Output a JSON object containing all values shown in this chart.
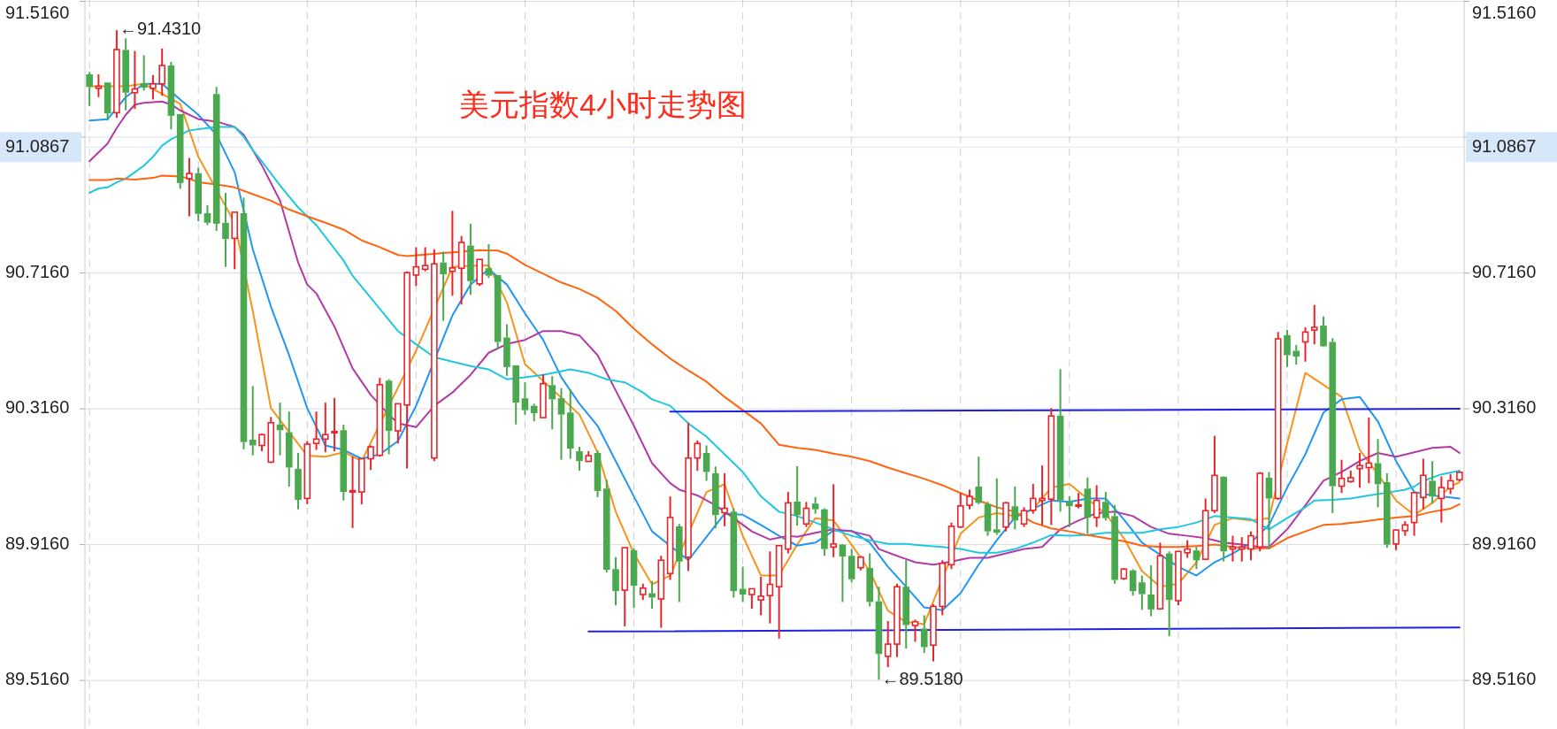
{
  "chart_data": {
    "type": "candlestick",
    "title": "美元指数4小时走势图",
    "categories": [
      null,
      null,
      null,
      null,
      null,
      null,
      null,
      null,
      null,
      null,
      null,
      null,
      null,
      null,
      null,
      null,
      null,
      null,
      null,
      null,
      null,
      null,
      null,
      null,
      null,
      null,
      null,
      null,
      null,
      null,
      null,
      null,
      null,
      null,
      null,
      null,
      null,
      null,
      null,
      null,
      null,
      null,
      null,
      null,
      null,
      null,
      null,
      null,
      null,
      null,
      null,
      null,
      null,
      null,
      null,
      null,
      null,
      null,
      null,
      null,
      null,
      null,
      null,
      null,
      null,
      null,
      null,
      null,
      null,
      null,
      null,
      null,
      null,
      null,
      null,
      null,
      null,
      null,
      null,
      null,
      null,
      null,
      null,
      null,
      null,
      null,
      null,
      null,
      null,
      null,
      null,
      null,
      null,
      null,
      null,
      null,
      null,
      null,
      null,
      null,
      null,
      null,
      null,
      null,
      null,
      null,
      null,
      null,
      null,
      null,
      null,
      null,
      null,
      null,
      null,
      null,
      null,
      null,
      null,
      null,
      null,
      null,
      null,
      null,
      null,
      null,
      null,
      null,
      null,
      null,
      null,
      null,
      null,
      null,
      null,
      null,
      null,
      null,
      null,
      null,
      null,
      null,
      null,
      null,
      null,
      null,
      null,
      null,
      null,
      null,
      null,
      null
    ],
    "ohlc": [
      [
        91.301,
        91.308,
        91.208,
        91.264
      ],
      [
        91.26,
        91.301,
        91.234,
        91.266
      ],
      [
        91.277,
        91.277,
        91.165,
        91.186
      ],
      [
        91.188,
        91.431,
        91.173,
        91.374
      ],
      [
        91.373,
        91.407,
        91.195,
        91.247
      ],
      [
        91.247,
        91.37,
        91.199,
        91.258
      ],
      [
        91.275,
        91.357,
        91.253,
        91.262
      ],
      [
        91.26,
        91.299,
        91.227,
        91.273
      ],
      [
        91.273,
        91.377,
        91.238,
        91.327
      ],
      [
        91.327,
        91.338,
        91.139,
        91.179
      ],
      [
        91.184,
        91.184,
        90.964,
        90.981
      ],
      [
        90.994,
        91.055,
        90.883,
        91.009
      ],
      [
        91.01,
        91.026,
        90.868,
        90.89
      ],
      [
        90.892,
        90.916,
        90.857,
        90.864
      ],
      [
        91.243,
        91.264,
        90.84,
        90.861
      ],
      [
        90.864,
        90.952,
        90.734,
        90.816
      ],
      [
        90.818,
        90.895,
        90.727,
        90.895
      ],
      [
        90.892,
        90.938,
        90.197,
        90.218
      ],
      [
        90.225,
        90.383,
        90.179,
        90.208
      ],
      [
        90.208,
        90.243,
        90.191,
        90.24
      ],
      [
        90.159,
        90.292,
        90.156,
        90.275
      ],
      [
        90.27,
        90.334,
        90.179,
        90.253
      ],
      [
        90.247,
        90.308,
        90.087,
        90.143
      ],
      [
        90.139,
        90.186,
        90.02,
        90.048
      ],
      [
        90.052,
        90.221,
        90.035,
        90.212
      ],
      [
        90.214,
        90.308,
        90.195,
        90.227
      ],
      [
        90.227,
        90.334,
        90.188,
        90.24
      ],
      [
        90.245,
        90.348,
        90.191,
        90.249
      ],
      [
        90.253,
        90.269,
        90.046,
        90.071
      ],
      [
        90.071,
        90.175,
        89.965,
        90.075
      ],
      [
        90.071,
        90.169,
        90.035,
        90.169
      ],
      [
        90.169,
        90.208,
        90.136,
        90.204
      ],
      [
        90.179,
        90.407,
        90.175,
        90.387
      ],
      [
        90.399,
        90.403,
        90.182,
        90.251
      ],
      [
        90.251,
        90.331,
        90.214,
        90.331
      ],
      [
        90.327,
        90.721,
        90.14,
        90.717
      ],
      [
        90.71,
        90.792,
        90.678,
        90.734
      ],
      [
        90.727,
        90.792,
        90.721,
        90.738
      ],
      [
        90.171,
        90.786,
        90.162,
        90.743
      ],
      [
        90.747,
        90.779,
        90.575,
        90.712
      ],
      [
        90.721,
        90.899,
        90.649,
        90.731
      ],
      [
        90.73,
        90.825,
        90.623,
        90.806
      ],
      [
        90.797,
        90.861,
        90.652,
        90.692
      ],
      [
        90.684,
        90.756,
        90.678,
        90.756
      ],
      [
        90.73,
        90.801,
        90.701,
        90.708
      ],
      [
        90.71,
        90.71,
        90.494,
        90.513
      ],
      [
        90.526,
        90.565,
        90.413,
        90.439
      ],
      [
        90.444,
        90.444,
        90.27,
        90.334
      ],
      [
        90.347,
        90.394,
        90.299,
        90.312
      ],
      [
        90.325,
        90.331,
        90.279,
        90.303
      ],
      [
        90.29,
        90.418,
        90.29,
        90.39
      ],
      [
        90.386,
        90.412,
        90.256,
        90.344
      ],
      [
        90.347,
        90.377,
        90.166,
        90.299
      ],
      [
        90.305,
        90.373,
        90.169,
        90.199
      ],
      [
        90.191,
        90.204,
        90.134,
        90.162
      ],
      [
        90.161,
        90.191,
        90.16,
        90.178
      ],
      [
        90.186,
        90.193,
        90.056,
        90.074
      ],
      [
        90.081,
        90.107,
        89.834,
        89.842
      ],
      [
        89.844,
        89.879,
        89.737,
        89.779
      ],
      [
        89.782,
        89.907,
        89.675,
        89.907
      ],
      [
        89.899,
        89.905,
        89.73,
        89.795
      ],
      [
        89.769,
        89.801,
        89.753,
        89.788
      ],
      [
        89.773,
        89.809,
        89.727,
        89.76
      ],
      [
        89.756,
        89.883,
        89.671,
        89.87
      ],
      [
        89.831,
        90.058,
        89.812,
        89.996
      ],
      [
        89.97,
        89.977,
        89.747,
        89.866
      ],
      [
        89.879,
        90.275,
        89.838,
        90.171
      ],
      [
        90.171,
        90.223,
        90.133,
        90.214
      ],
      [
        90.186,
        90.208,
        90.104,
        90.13
      ],
      [
        90.126,
        90.146,
        89.964,
        90.003
      ],
      [
        90.01,
        90.126,
        89.97,
        90.023
      ],
      [
        90.013,
        90.023,
        89.76,
        89.779
      ],
      [
        89.786,
        89.851,
        89.747,
        89.769
      ],
      [
        89.769,
        89.786,
        89.727,
        89.786
      ],
      [
        89.753,
        89.821,
        89.708,
        89.764
      ],
      [
        89.766,
        89.896,
        89.684,
        89.799
      ],
      [
        89.792,
        89.913,
        89.639,
        89.913
      ],
      [
        89.903,
        90.071,
        89.89,
        90.039
      ],
      [
        90.043,
        90.147,
        89.972,
        90.003
      ],
      [
        89.977,
        90.042,
        89.968,
        90.023
      ],
      [
        90.037,
        90.056,
        90.007,
        90.02
      ],
      [
        90.02,
        90.023,
        89.883,
        89.903
      ],
      [
        89.909,
        90.094,
        89.879,
        89.918
      ],
      [
        89.916,
        89.918,
        89.747,
        89.881
      ],
      [
        89.883,
        89.903,
        89.805,
        89.814
      ],
      [
        89.848,
        89.883,
        89.84,
        89.879
      ],
      [
        89.847,
        89.89,
        89.734,
        89.747
      ],
      [
        89.749,
        89.792,
        89.518,
        89.594
      ],
      [
        89.587,
        89.691,
        89.555,
        89.623
      ],
      [
        89.623,
        89.801,
        89.585,
        89.792
      ],
      [
        89.792,
        89.87,
        89.61,
        89.679
      ],
      [
        89.678,
        89.695,
        89.63,
        89.689
      ],
      [
        89.669,
        89.708,
        89.597,
        89.614
      ],
      [
        89.62,
        89.74,
        89.572,
        89.734
      ],
      [
        89.734,
        89.87,
        89.708,
        89.861
      ],
      [
        89.857,
        89.981,
        89.844,
        89.97
      ],
      [
        89.968,
        90.068,
        89.965,
        90.03
      ],
      [
        90.032,
        90.078,
        90.02,
        90.058
      ],
      [
        90.087,
        90.175,
        90.035,
        90.039
      ],
      [
        90.035,
        90.042,
        89.942,
        89.955
      ],
      [
        89.961,
        90.111,
        89.945,
        89.951
      ],
      [
        89.968,
        90.042,
        89.955,
        90.039
      ],
      [
        90.029,
        90.087,
        89.961,
        89.987
      ],
      [
        89.977,
        90.026,
        89.968,
        90.016
      ],
      [
        90.017,
        90.095,
        90.007,
        90.052
      ],
      [
        90.046,
        90.149,
        89.974,
        90.052
      ],
      [
        90.05,
        90.318,
        89.974,
        90.295
      ],
      [
        90.296,
        90.433,
        90.013,
        90.046
      ],
      [
        90.042,
        90.058,
        89.968,
        90.029
      ],
      [
        90.029,
        90.068,
        90.023,
        90.033
      ],
      [
        90.081,
        90.114,
        89.948,
        89.996
      ],
      [
        89.996,
        90.091,
        89.968,
        90.046
      ],
      [
        90.042,
        90.071,
        89.987,
        89.994
      ],
      [
        90.0,
        90.033,
        89.801,
        89.812
      ],
      [
        89.816,
        89.847,
        89.812,
        89.844
      ],
      [
        89.84,
        89.844,
        89.766,
        89.779
      ],
      [
        89.805,
        89.825,
        89.724,
        89.77
      ],
      [
        89.769,
        89.855,
        89.705,
        89.725
      ],
      [
        89.727,
        89.922,
        89.724,
        89.883
      ],
      [
        89.89,
        89.896,
        89.646,
        89.753
      ],
      [
        89.751,
        89.896,
        89.737,
        89.896
      ],
      [
        89.892,
        89.929,
        89.877,
        89.903
      ],
      [
        89.899,
        89.909,
        89.844,
        89.87
      ],
      [
        89.873,
        90.052,
        89.87,
        90.016
      ],
      [
        90.016,
        90.236,
        90.009,
        90.12
      ],
      [
        90.116,
        90.117,
        89.866,
        89.896
      ],
      [
        89.903,
        89.942,
        89.866,
        89.909
      ],
      [
        89.903,
        89.938,
        89.866,
        89.909
      ],
      [
        89.903,
        89.955,
        89.87,
        89.942
      ],
      [
        89.909,
        90.13,
        89.896,
        90.126
      ],
      [
        90.113,
        90.13,
        89.903,
        90.052
      ],
      [
        90.052,
        90.542,
        90.048,
        90.522
      ],
      [
        90.533,
        90.548,
        90.439,
        90.474
      ],
      [
        90.487,
        90.504,
        90.446,
        90.47
      ],
      [
        90.513,
        90.556,
        90.455,
        90.542
      ],
      [
        90.548,
        90.622,
        90.506,
        90.556
      ],
      [
        90.561,
        90.588,
        90.498,
        90.5
      ],
      [
        90.513,
        90.524,
        90.009,
        90.088
      ],
      [
        90.088,
        90.166,
        90.068,
        90.111
      ],
      [
        90.102,
        90.134,
        90.098,
        90.113
      ],
      [
        90.14,
        90.186,
        90.084,
        90.149
      ],
      [
        90.143,
        90.29,
        90.097,
        90.156
      ],
      [
        90.156,
        90.227,
        90.026,
        90.094
      ],
      [
        90.1,
        90.126,
        89.907,
        89.916
      ],
      [
        89.918,
        89.961,
        89.9,
        89.959
      ],
      [
        89.957,
        89.985,
        89.942,
        89.974
      ],
      [
        89.981,
        90.071,
        89.942,
        90.069
      ],
      [
        90.055,
        90.169,
        90.02,
        90.12
      ],
      [
        90.104,
        90.162,
        90.037,
        90.058
      ],
      [
        90.052,
        90.117,
        89.981,
        90.084
      ],
      [
        90.081,
        90.124,
        90.065,
        90.104
      ],
      [
        90.107,
        90.132,
        90.102,
        90.129
      ]
    ],
    "series": [
      {
        "type": "line",
        "color": "#f7941d",
        "values": [
          91.266,
          null,
          91.266,
          null,
          91.266,
          null,
          91.273,
          null,
          null,
          null,
          91.214,
          null,
          91.058,
          null,
          null,
          null,
          90.864,
          null,
          90.604,
          null,
          90.318,
          null,
          null,
          null,
          90.178,
          null,
          90.175,
          null,
          90.188,
          null,
          90.162,
          null,
          null,
          null,
          null,
          null,
          90.487,
          null,
          null,
          null,
          90.734,
          null,
          90.737,
          null,
          90.738,
          null,
          90.63,
          null,
          90.448,
          null,
          null,
          null,
          null,
          null,
          90.299,
          null,
          90.188,
          null,
          90.013,
          null,
          89.89,
          null,
          89.799,
          null,
          89.825,
          null,
          null,
          null,
          90.071,
          null,
          90.094,
          null,
          89.942,
          null,
          89.825,
          null,
          89.825,
          null,
          89.916,
          null,
          89.994,
          null,
          89.987,
          null,
          89.916,
          null,
          89.838,
          null,
          89.721,
          null,
          89.688,
          null,
          89.682,
          null,
          null,
          null,
          89.948,
          null,
          89.996,
          null,
          90.009,
          null,
          90.0,
          null,
          90.02,
          null,
          90.084,
          null,
          90.095,
          null,
          null,
          null,
          90.007,
          null,
          89.935,
          null,
          89.838,
          null,
          89.792,
          null,
          89.801,
          null,
          89.864,
          null,
          89.974,
          null,
          89.994,
          null,
          89.987,
          null,
          89.994,
          null,
          90.214,
          null,
          90.422,
          null,
          null,
          null,
          90.351,
          null,
          90.195,
          null,
          90.123,
          null,
          90.046,
          null,
          90.003,
          null,
          90.039,
          null,
          90.087,
          90.1
        ]
      },
      {
        "type": "line",
        "color": "#2196f3",
        "values": [
          91.165,
          null,
          91.169,
          null,
          91.234,
          null,
          91.273,
          null,
          91.273,
          null,
          91.227,
          null,
          91.182,
          null,
          91.123,
          null,
          91.013,
          null,
          90.786,
          null,
          90.617,
          null,
          90.474,
          null,
          90.318,
          null,
          90.208,
          null,
          90.195,
          null,
          90.169,
          null,
          90.182,
          null,
          90.221,
          null,
          90.325,
          null,
          null,
          null,
          90.591,
          null,
          90.682,
          null,
          90.727,
          null,
          90.682,
          null,
          90.597,
          null,
          90.519,
          null,
          90.409,
          null,
          90.331,
          null,
          90.266,
          null,
          90.162,
          null,
          90.058,
          null,
          89.955,
          null,
          null,
          null,
          89.87,
          null,
          89.939,
          null,
          90.007,
          null,
          90.004,
          null,
          89.974,
          null,
          89.942,
          null,
          89.913,
          null,
          89.922,
          null,
          89.957,
          null,
          89.957,
          null,
          89.922,
          null,
          89.851,
          null,
          89.792,
          null,
          89.731,
          null,
          89.723,
          null,
          89.773,
          null,
          89.857,
          null,
          89.929,
          null,
          89.996,
          null,
          90.022,
          null,
          90.046,
          null,
          90.042,
          null,
          90.052,
          null,
          90.052,
          null,
          89.99,
          null,
          89.922,
          null,
          null,
          null,
          89.851,
          null,
          89.825,
          null,
          89.864,
          null,
          89.89,
          null,
          89.922,
          null,
          89.974,
          null,
          90.084,
          null,
          90.182,
          null,
          90.305,
          null,
          90.344,
          null,
          90.351,
          null,
          90.279,
          null,
          90.162,
          null,
          90.071,
          null,
          90.061,
          null,
          90.055,
          90.052
        ]
      },
      {
        "type": "line",
        "color": "#b23aa6",
        "values": [
          91.045,
          null,
          91.097,
          91.143,
          91.182,
          91.212,
          91.217,
          null,
          91.221,
          91.212,
          91.195,
          null,
          91.169,
          null,
          91.162,
          null,
          91.146,
          91.123,
          null,
          91.033,
          null,
          90.929,
          90.838,
          90.747,
          90.682,
          90.656,
          null,
          90.558,
          null,
          90.435,
          null,
          90.357,
          null,
          90.299,
          90.273,
          null,
          90.262,
          null,
          90.325,
          null,
          90.364,
          null,
          90.416,
          null,
          90.481,
          null,
          90.507,
          null,
          90.519,
          null,
          90.545,
          null,
          90.545,
          null,
          90.532,
          null,
          90.474,
          null,
          90.37,
          null,
          90.266,
          null,
          90.156,
          null,
          90.097,
          90.078,
          null,
          90.061,
          null,
          90.032,
          null,
          89.994,
          null,
          89.955,
          null,
          89.931,
          null,
          89.942,
          89.939,
          null,
          89.951,
          null,
          89.961,
          null,
          89.955,
          null,
          89.942,
          89.903,
          null,
          89.883,
          null,
          89.864,
          null,
          89.857,
          null,
          89.866,
          null,
          89.877,
          null,
          89.877,
          null,
          89.89,
          null,
          89.903,
          null,
          89.909,
          null,
          89.961,
          null,
          89.987,
          null,
          90.009,
          null,
          90.013,
          null,
          90.0,
          null,
          89.968,
          null,
          89.948,
          null,
          89.942,
          null,
          89.935,
          null,
          89.922,
          null,
          89.916,
          null,
          89.909,
          89.909,
          null,
          89.961,
          null,
          90.032,
          null,
          90.104,
          null,
          90.13,
          null,
          90.162,
          null,
          90.186,
          null,
          90.175,
          null,
          90.188,
          null,
          90.201,
          null,
          90.204,
          90.186
        ]
      },
      {
        "type": "line",
        "color": "#1fc8e0",
        "values": [
          90.952,
          90.965,
          90.968,
          90.983,
          90.994,
          91.013,
          91.032,
          91.058,
          91.091,
          91.11,
          91.123,
          91.136,
          null,
          91.143,
          91.146,
          null,
          91.146,
          91.117,
          91.078,
          91.045,
          null,
          90.974,
          null,
          90.909,
          null,
          90.857,
          null,
          null,
          90.753,
          90.708,
          null,
          90.643,
          null,
          90.578,
          90.545,
          null,
          90.506,
          null,
          90.468,
          null,
          90.455,
          null,
          90.442,
          null,
          90.432,
          null,
          90.403,
          null,
          90.409,
          null,
          90.416,
          null,
          null,
          90.432,
          null,
          90.422,
          null,
          90.403,
          null,
          90.394,
          null,
          90.364,
          90.344,
          null,
          90.325,
          90.299,
          90.273,
          null,
          90.234,
          null,
          90.182,
          null,
          90.13,
          null,
          90.058,
          null,
          90.013,
          null,
          90.0,
          null,
          89.981,
          null,
          89.961,
          null,
          89.942,
          null,
          89.929,
          null,
          89.918,
          null,
          89.918,
          null,
          89.913,
          null,
          89.909,
          null,
          89.903,
          null,
          89.892,
          null,
          89.892,
          null,
          89.903,
          null,
          89.922,
          null,
          89.944,
          null,
          89.942,
          null,
          89.944,
          null,
          89.951,
          null,
          89.951,
          null,
          89.951,
          null,
          89.961,
          null,
          89.968,
          null,
          89.981,
          null,
          90.0,
          null,
          89.996,
          null,
          89.991,
          null,
          89.961,
          null,
          89.994,
          null,
          90.026,
          90.046,
          null,
          90.048,
          null,
          90.052,
          null,
          90.061,
          null,
          90.069,
          null,
          90.078,
          90.087,
          90.104,
          null,
          90.123,
          null,
          90.134
        ]
      },
      {
        "type": "line",
        "color": "#ff6410",
        "values": [
          90.99,
          null,
          90.99,
          90.994,
          null,
          90.991,
          null,
          90.996,
          91.003,
          null,
          91.0,
          90.994,
          90.983,
          null,
          90.977,
          null,
          90.968,
          null,
          90.948,
          null,
          90.929,
          null,
          90.903,
          null,
          90.883,
          null,
          90.864,
          null,
          90.844,
          null,
          90.812,
          null,
          90.792,
          null,
          90.769,
          90.766,
          null,
          90.77,
          null,
          90.775,
          null,
          90.779,
          null,
          90.783,
          null,
          90.782,
          90.773,
          null,
          90.74,
          null,
          90.714,
          null,
          90.688,
          null,
          90.669,
          null,
          90.643,
          null,
          90.604,
          null,
          90.552,
          null,
          90.506,
          null,
          90.464,
          null,
          90.429,
          null,
          90.396,
          null,
          90.351,
          null,
          90.312,
          null,
          90.273,
          null,
          90.21,
          null,
          90.201,
          null,
          90.195,
          null,
          90.184,
          null,
          90.175,
          null,
          90.162,
          null,
          90.143,
          null,
          90.126,
          null,
          90.11,
          null,
          90.091,
          null,
          90.068,
          null,
          90.046,
          null,
          90.026,
          null,
          90.013,
          null,
          89.981,
          null,
          89.964,
          null,
          89.955,
          null,
          89.944,
          null,
          89.935,
          null,
          89.926,
          null,
          89.913,
          null,
          89.909,
          null,
          89.909,
          null,
          89.912,
          null,
          89.916,
          null,
          89.909,
          null,
          89.905,
          null,
          89.905,
          null,
          89.935,
          null,
          89.955,
          null,
          89.974,
          null,
          89.977,
          null,
          89.983,
          null,
          89.99,
          null,
          89.996,
          null,
          90.0,
          null,
          90.013,
          null,
          90.022,
          90.035
        ]
      },
      {
        "type": "line",
        "color": "#1f1fe6",
        "values": [
          null,
          null,
          null,
          null,
          null,
          null,
          null,
          null,
          null,
          null,
          null,
          null,
          null,
          null,
          null,
          null,
          null,
          null,
          null,
          null,
          null,
          null,
          null,
          null,
          null,
          null,
          null,
          null,
          null,
          null,
          null,
          null,
          null,
          null,
          null,
          null,
          null,
          null,
          null,
          null,
          null,
          null,
          null,
          null,
          null,
          null,
          null,
          null,
          null,
          null,
          null,
          null,
          null,
          null,
          null,
          null,
          null,
          null,
          null,
          null,
          null,
          null,
          null,
          null,
          90.308,
          null,
          null,
          null,
          null,
          null,
          null,
          null,
          null,
          null,
          null,
          null,
          null,
          null,
          null,
          null,
          null,
          null,
          null,
          null,
          null,
          null,
          null,
          null,
          null,
          null,
          null,
          null,
          null,
          null,
          null,
          null,
          null,
          null,
          null,
          null,
          null,
          null,
          null,
          null,
          null,
          null,
          null,
          null,
          null,
          null,
          null,
          null,
          null,
          null,
          null,
          null,
          null,
          null,
          null,
          null,
          null,
          null,
          null,
          null,
          null,
          null,
          null,
          null,
          null,
          null,
          null,
          null,
          null,
          null,
          null,
          null,
          null,
          null,
          null,
          null,
          null,
          null,
          null,
          null,
          null,
          null,
          null,
          null,
          null,
          null,
          null,
          90.316
        ]
      },
      {
        "type": "line",
        "color": "#1f1fe6",
        "values": [
          null,
          null,
          null,
          null,
          null,
          null,
          null,
          null,
          null,
          null,
          null,
          null,
          null,
          null,
          null,
          null,
          null,
          null,
          null,
          null,
          null,
          null,
          null,
          null,
          null,
          null,
          null,
          null,
          null,
          null,
          null,
          null,
          null,
          null,
          null,
          null,
          null,
          null,
          null,
          null,
          null,
          null,
          null,
          null,
          null,
          null,
          null,
          null,
          null,
          null,
          null,
          null,
          null,
          null,
          null,
          89.66,
          null,
          null,
          null,
          null,
          null,
          null,
          null,
          null,
          null,
          null,
          null,
          null,
          null,
          null,
          null,
          null,
          null,
          null,
          null,
          null,
          null,
          null,
          null,
          null,
          null,
          null,
          null,
          null,
          null,
          null,
          null,
          null,
          null,
          null,
          null,
          null,
          null,
          null,
          null,
          null,
          null,
          null,
          null,
          null,
          null,
          null,
          null,
          null,
          null,
          null,
          null,
          null,
          null,
          null,
          null,
          null,
          null,
          null,
          null,
          null,
          null,
          null,
          null,
          null,
          null,
          null,
          null,
          null,
          null,
          null,
          null,
          null,
          null,
          null,
          null,
          null,
          null,
          null,
          null,
          null,
          null,
          null,
          null,
          null,
          null,
          null,
          null,
          null,
          null,
          null,
          null,
          null,
          null,
          null,
          null,
          89.672
        ]
      }
    ],
    "ylim": [
      89.373,
      91.52
    ],
    "yticks": [
      {
        "value": 89.516,
        "label": "89.5160"
      },
      {
        "value": 89.916,
        "label": "89.9160"
      },
      {
        "value": 90.316,
        "label": "90.3160"
      },
      {
        "value": 90.716,
        "label": "90.7160"
      },
      {
        "value": 91.116,
        "label": null
      },
      {
        "value": 91.516,
        "label": "91.5160"
      }
    ],
    "y2lim": [
      89.373,
      91.52
    ],
    "y2ticks": [
      {
        "value": 89.516,
        "label": "89.5160"
      },
      {
        "value": 89.916,
        "label": "89.9160"
      },
      {
        "value": 90.316,
        "label": "90.3160"
      },
      {
        "value": 90.716,
        "label": "90.7160"
      },
      {
        "value": 91.116,
        "label": null
      },
      {
        "value": 91.516,
        "label": "91.5160"
      }
    ],
    "ref_lines": [
      {
        "axis": "y",
        "value": 91.0867,
        "label": "91.0867",
        "color": "#d6e7fa"
      }
    ],
    "annotations": [
      "←91.4310",
      "←89.5180"
    ],
    "grid": "y",
    "tick_labels": "y"
  }
}
